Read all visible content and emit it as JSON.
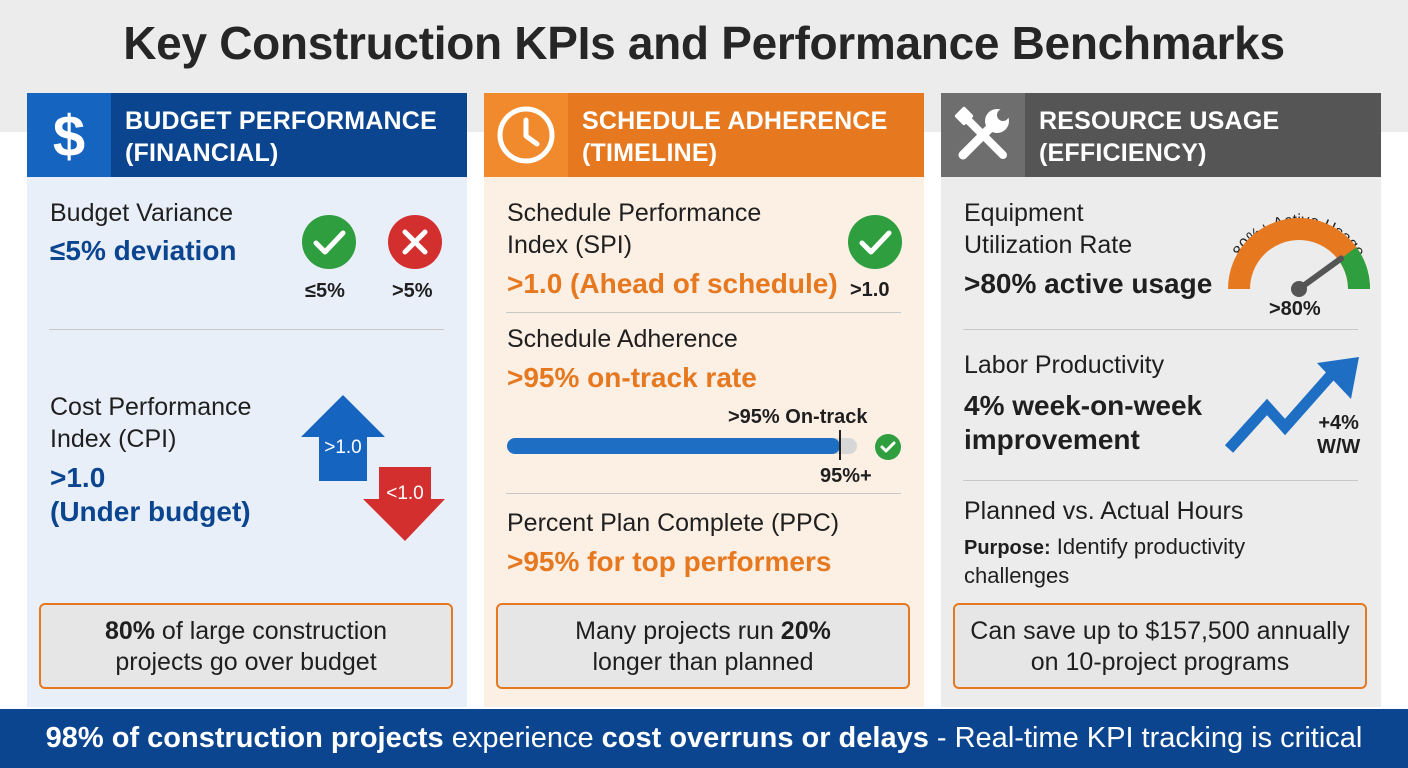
{
  "title": "Key Construction KPIs and Performance Benchmarks",
  "columns": {
    "budget": {
      "header_line1": "BUDGET PERFORMANCE",
      "header_line2": "(FINANCIAL)",
      "icon": "dollar-icon",
      "kpi1_label": "Budget Variance",
      "kpi1_value": "≤5% deviation",
      "ok_label": "≤5%",
      "bad_label": ">5%",
      "kpi2_label_line1": "Cost Performance",
      "kpi2_label_line2": "Index (CPI)",
      "kpi2_value_line1": ">1.0",
      "kpi2_value_line2": "(Under budget)",
      "arrow_up_label": ">1.0",
      "arrow_down_label": "<1.0",
      "callout_bold": "80%",
      "callout_rest": " of large construction",
      "callout_line2": "projects go over budget"
    },
    "schedule": {
      "header_line1": "SCHEDULE ADHERENCE",
      "header_line2": "(TIMELINE)",
      "icon": "clock-icon",
      "kpi1_label_line1": "Schedule Performance",
      "kpi1_label_line2": "Index (SPI)",
      "kpi1_value": ">1.0 (Ahead of schedule)",
      "check_label": ">1.0",
      "kpi2_label": "Schedule Adherence",
      "kpi2_value": ">95% on-track rate",
      "progress_caption": ">95% On-track",
      "progress_marker_label": "95%+",
      "progress_value": 0.95,
      "kpi3_label": "Percent Plan Complete (PPC)",
      "kpi3_value": ">95% for top performers",
      "callout_line1": "Many projects run ",
      "callout_bold": "20%",
      "callout_line2": "longer than planned"
    },
    "resource": {
      "header_line1": "RESOURCE USAGE",
      "header_line2": "(EFFICIENCY)",
      "icon": "tools-icon",
      "kpi1_label_line1": "Equipment",
      "kpi1_label_line2": "Utilization Rate",
      "kpi1_value": ">80% active usage",
      "gauge_caption": "80%+ Active Usage",
      "gauge_label": ">80%",
      "gauge_level": 0.8,
      "kpi2_label": "Labor Productivity",
      "kpi2_value_line1": "4% week-on-week",
      "kpi2_value_line2": "improvement",
      "trend_label_line1": "+4%",
      "trend_label_line2": "W/W",
      "kpi3_label": "Planned vs. Actual Hours",
      "purpose_bold": "Purpose:",
      "purpose_line1": " Identify productivity",
      "purpose_line2": "challenges",
      "callout_line1": "Can save up to $157,500 annually",
      "callout_line2": "on 10-project programs"
    }
  },
  "footer": {
    "bold1": "98% of construction projects",
    "text1": " experience ",
    "bold2": "cost overruns or delays",
    "text2": " - Real-time KPI tracking is critical"
  },
  "colors": {
    "blue_dark": "#0b4590",
    "blue": "#1565c0",
    "orange": "#e6781f",
    "gray_dark": "#555555",
    "green": "#2e9e3e",
    "red": "#d32f2f"
  }
}
